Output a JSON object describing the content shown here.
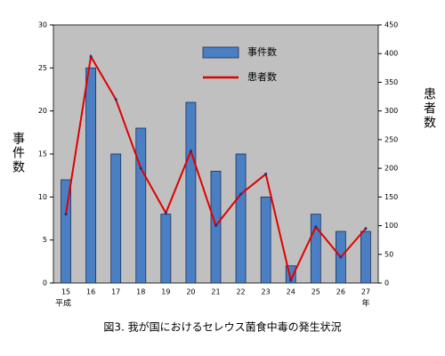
{
  "chart_data": {
    "type": "bar-line",
    "caption": "図3. 我が国におけるセレウス菌食中毒の発生状況",
    "y_label": "事件数",
    "y2_label": "患者数",
    "x_prefix": "平成",
    "x_suffix": "年",
    "categories": [
      "15",
      "16",
      "17",
      "18",
      "19",
      "20",
      "21",
      "22",
      "23",
      "24",
      "25",
      "26",
      "27"
    ],
    "series": [
      {
        "name": "事件数",
        "color": "#4a7fc4",
        "values": [
          12,
          25,
          15,
          18,
          8,
          21,
          13,
          15,
          10,
          2,
          8,
          6,
          6
        ]
      },
      {
        "name": "患者数",
        "color": "#e00000",
        "axis": "y2",
        "values": [
          120,
          395,
          320,
          200,
          122,
          230,
          100,
          155,
          190,
          5,
          98,
          45,
          95
        ]
      }
    ],
    "ylim": [
      0,
      30
    ],
    "yticks": [
      0,
      5,
      10,
      15,
      20,
      25,
      30
    ],
    "y2lim": [
      0,
      450
    ],
    "y2ticks": [
      0,
      50,
      100,
      150,
      200,
      250,
      300,
      350,
      400,
      450
    ],
    "background": "#c0c0c0"
  }
}
